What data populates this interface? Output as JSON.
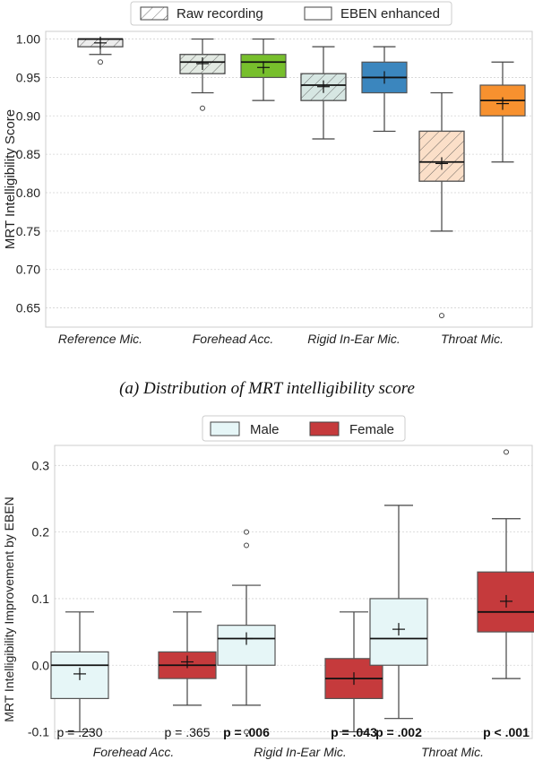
{
  "chart_data": [
    {
      "type": "box",
      "legend": {
        "placement": "top-center",
        "entries": [
          {
            "label": "Raw recording",
            "style": "hatched"
          },
          {
            "label": "EBEN enhanced",
            "style": "solid"
          }
        ]
      },
      "ylabel": "MRT Intelligibility Score",
      "ylim": [
        0.625,
        1.01
      ],
      "yticks": [
        "0.65",
        "0.70",
        "0.75",
        "0.80",
        "0.85",
        "0.90",
        "0.95",
        "1.00"
      ],
      "grid": true,
      "categories": [
        "Reference Mic.",
        "Forehead Acc.",
        "Rigid In-Ear Mic.",
        "Throat Mic."
      ],
      "boxes": [
        {
          "category": "Reference Mic.",
          "series": "Raw recording",
          "color": "#ececec",
          "whisker_low": 0.98,
          "q1": 0.99,
          "median": 1.0,
          "mean": 0.995,
          "q3": 1.0,
          "whisker_high": 1.0,
          "outliers": [
            0.97
          ]
        },
        {
          "category": "Forehead Acc.",
          "series": "Raw recording",
          "color": "#e2e9e2",
          "whisker_low": 0.93,
          "q1": 0.955,
          "median": 0.97,
          "mean": 0.968,
          "q3": 0.98,
          "whisker_high": 1.0,
          "outliers": [
            0.91
          ]
        },
        {
          "category": "Forehead Acc.",
          "series": "EBEN enhanced",
          "color": "#77bf2c",
          "whisker_low": 0.92,
          "q1": 0.95,
          "median": 0.97,
          "mean": 0.963,
          "q3": 0.98,
          "whisker_high": 1.0,
          "outliers": []
        },
        {
          "category": "Rigid In-Ear Mic.",
          "series": "Raw recording",
          "color": "#d6e6e2",
          "whisker_low": 0.87,
          "q1": 0.92,
          "median": 0.94,
          "mean": 0.938,
          "q3": 0.955,
          "whisker_high": 0.99,
          "outliers": []
        },
        {
          "category": "Rigid In-Ear Mic.",
          "series": "EBEN enhanced",
          "color": "#3b86be",
          "whisker_low": 0.88,
          "q1": 0.93,
          "median": 0.95,
          "mean": 0.95,
          "q3": 0.97,
          "whisker_high": 0.99,
          "outliers": []
        },
        {
          "category": "Throat Mic.",
          "series": "Raw recording",
          "color": "#fbdfc8",
          "whisker_low": 0.75,
          "q1": 0.815,
          "median": 0.84,
          "mean": 0.838,
          "q3": 0.88,
          "whisker_high": 0.93,
          "outliers": [
            0.64
          ]
        },
        {
          "category": "Throat Mic.",
          "series": "EBEN enhanced",
          "color": "#f7912f",
          "whisker_low": 0.84,
          "q1": 0.9,
          "median": 0.92,
          "mean": 0.916,
          "q3": 0.94,
          "whisker_high": 0.97,
          "outliers": []
        }
      ],
      "caption": "(a) Distribution of MRT intelligibility score"
    },
    {
      "type": "box",
      "legend": {
        "placement": "top-center",
        "entries": [
          {
            "label": "Male",
            "color": "#e6f6f7"
          },
          {
            "label": "Female",
            "color": "#c53a3c"
          }
        ]
      },
      "ylabel": "MRT Intelligibility Improvement by EBEN",
      "ylim": [
        -0.11,
        0.33
      ],
      "yticks": [
        "-0.1",
        "0.0",
        "0.1",
        "0.2",
        "0.3"
      ],
      "grid": true,
      "categories": [
        "Forehead Acc.",
        "Rigid In-Ear Mic.",
        "Throat Mic."
      ],
      "boxes": [
        {
          "category": "Forehead Acc.",
          "series": "Male",
          "color": "#e6f6f7",
          "whisker_low": -0.1,
          "q1": -0.05,
          "median": 0.0,
          "mean": -0.013,
          "q3": 0.02,
          "whisker_high": 0.08,
          "outliers": [],
          "p_label": "p = .230",
          "bold": false
        },
        {
          "category": "Forehead Acc.",
          "series": "Female",
          "color": "#c53a3c",
          "whisker_low": -0.06,
          "q1": -0.02,
          "median": 0.0,
          "mean": 0.005,
          "q3": 0.02,
          "whisker_high": 0.08,
          "outliers": [],
          "p_label": "p = .365",
          "bold": false
        },
        {
          "category": "Rigid In-Ear Mic.",
          "series": "Male",
          "color": "#e6f6f7",
          "whisker_low": -0.06,
          "q1": 0.0,
          "median": 0.04,
          "mean": 0.04,
          "q3": 0.06,
          "whisker_high": 0.12,
          "outliers": [
            0.2,
            0.18,
            -0.1
          ],
          "p_label": "p = .006",
          "bold": true
        },
        {
          "category": "Rigid In-Ear Mic.",
          "series": "Female",
          "color": "#c53a3c",
          "whisker_low": -0.1,
          "q1": -0.05,
          "median": -0.02,
          "mean": -0.02,
          "q3": 0.01,
          "whisker_high": 0.08,
          "outliers": [],
          "p_label": "p = .043",
          "bold": true
        },
        {
          "category": "Throat Mic.",
          "series": "Male",
          "color": "#e6f6f7",
          "whisker_low": -0.08,
          "q1": 0.0,
          "median": 0.04,
          "mean": 0.054,
          "q3": 0.1,
          "whisker_high": 0.24,
          "outliers": [],
          "p_label": "p = .002",
          "bold": true
        },
        {
          "category": "Throat Mic.",
          "series": "Female",
          "color": "#c53a3c",
          "whisker_low": -0.02,
          "q1": 0.05,
          "median": 0.08,
          "mean": 0.096,
          "q3": 0.14,
          "whisker_high": 0.22,
          "outliers": [
            0.32
          ],
          "p_label": "p < .001",
          "bold": true
        }
      ]
    }
  ]
}
